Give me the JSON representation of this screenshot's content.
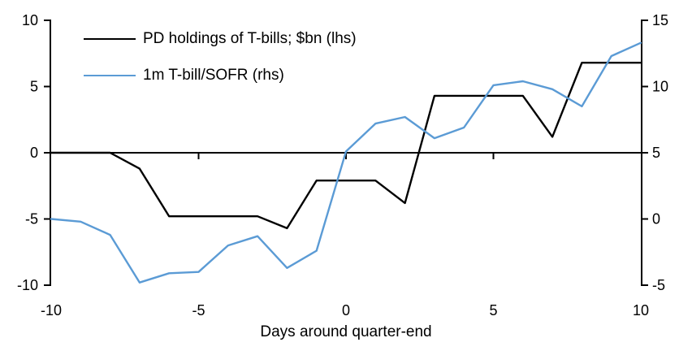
{
  "chart_data": {
    "type": "line",
    "title": "",
    "xlabel": "Days around quarter-end",
    "x": [
      -10,
      -9,
      -8,
      -7,
      -6,
      -5,
      -4,
      -3,
      -2,
      -1,
      0,
      1,
      2,
      3,
      4,
      5,
      6,
      7,
      8,
      9,
      10
    ],
    "series": [
      {
        "key": "pd-holdings-tbills",
        "name": "PD holdings of T-bills; $bn (lhs)",
        "axis": "left",
        "color": "#000000",
        "values": [
          0,
          0,
          0,
          -1.2,
          -4.8,
          -4.8,
          -4.8,
          -4.8,
          -5.7,
          -2.1,
          -2.1,
          -2.1,
          -3.8,
          4.3,
          4.3,
          4.3,
          4.3,
          1.2,
          6.8,
          6.8,
          6.8
        ]
      },
      {
        "key": "tbill-sofr-spread",
        "name": "1m T-bill/SOFR (rhs)",
        "axis": "right",
        "color": "#5B9BD5",
        "values": [
          0,
          -0.2,
          -1.2,
          -4.8,
          -4.1,
          -4.0,
          -2.0,
          -1.3,
          -3.7,
          -2.4,
          5.1,
          7.2,
          7.7,
          6.1,
          6.9,
          10.1,
          10.4,
          9.8,
          8.5,
          12.3,
          13.3
        ]
      }
    ],
    "left_axis": {
      "range": [
        -10,
        10
      ],
      "ticks": [
        10,
        5,
        0,
        -5,
        -10
      ]
    },
    "right_axis": {
      "range": [
        -5,
        15
      ],
      "ticks": [
        15,
        10,
        5,
        0,
        -5
      ]
    },
    "x_axis": {
      "range": [
        -10,
        10
      ],
      "ticks": [
        -10,
        -5,
        0,
        5,
        10
      ],
      "zero_line_ticks": [
        -5,
        0,
        5
      ]
    },
    "grid": false,
    "legend_position": "top-left"
  }
}
